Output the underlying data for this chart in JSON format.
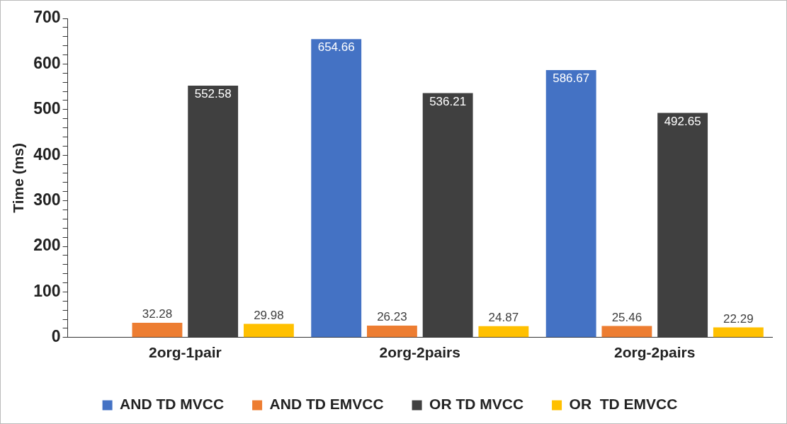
{
  "chart_data": {
    "type": "bar",
    "ylabel": "Time (ms)",
    "categories": [
      "2org-1pair",
      "2org-2pairs",
      "2org-2pairs"
    ],
    "series": [
      {
        "name": "AND TD MVCC",
        "color": "#4472c4",
        "values": [
          null,
          654.66,
          586.67
        ]
      },
      {
        "name": "AND TD EMVCC",
        "color": "#ed7d31",
        "values": [
          32.28,
          26.23,
          25.46
        ]
      },
      {
        "name": "OR TD MVCC",
        "color": "#404040",
        "values": [
          552.58,
          536.21,
          492.65
        ]
      },
      {
        "name": "OR  TD EMVCC",
        "color": "#ffc000",
        "values": [
          29.98,
          24.87,
          22.29
        ]
      }
    ],
    "ylim": [
      0,
      700
    ],
    "yticks": [
      0,
      {
        "value": 20,
        "label": null
      },
      {
        "value": 40,
        "label": null
      },
      {
        "value": 60,
        "label": null
      },
      {
        "value": 80,
        "label": null
      },
      100,
      {
        "value": 120,
        "label": null
      },
      {
        "value": 140,
        "label": null
      },
      {
        "value": 160,
        "label": null
      },
      {
        "value": 180,
        "label": null
      },
      200,
      {
        "value": 220,
        "label": null
      },
      {
        "value": 240,
        "label": null
      },
      {
        "value": 260,
        "label": null
      },
      {
        "value": 280,
        "label": null
      },
      300,
      {
        "value": 320,
        "label": null
      },
      {
        "value": 340,
        "label": null
      },
      {
        "value": 360,
        "label": null
      },
      {
        "value": 380,
        "label": null
      },
      400,
      {
        "value": 420,
        "label": null
      },
      {
        "value": 440,
        "label": null
      },
      {
        "value": 460,
        "label": null
      },
      {
        "value": 480,
        "label": null
      },
      500,
      {
        "value": 520,
        "label": null
      },
      {
        "value": 540,
        "label": null
      },
      {
        "value": 560,
        "label": null
      },
      {
        "value": 580,
        "label": null
      },
      600,
      {
        "value": 620,
        "label": null
      },
      {
        "value": 640,
        "label": null
      },
      {
        "value": 660,
        "label": null
      },
      {
        "value": 680,
        "label": null
      },
      700
    ],
    "grid": false,
    "legend": "bottom",
    "data_labels": true
  }
}
